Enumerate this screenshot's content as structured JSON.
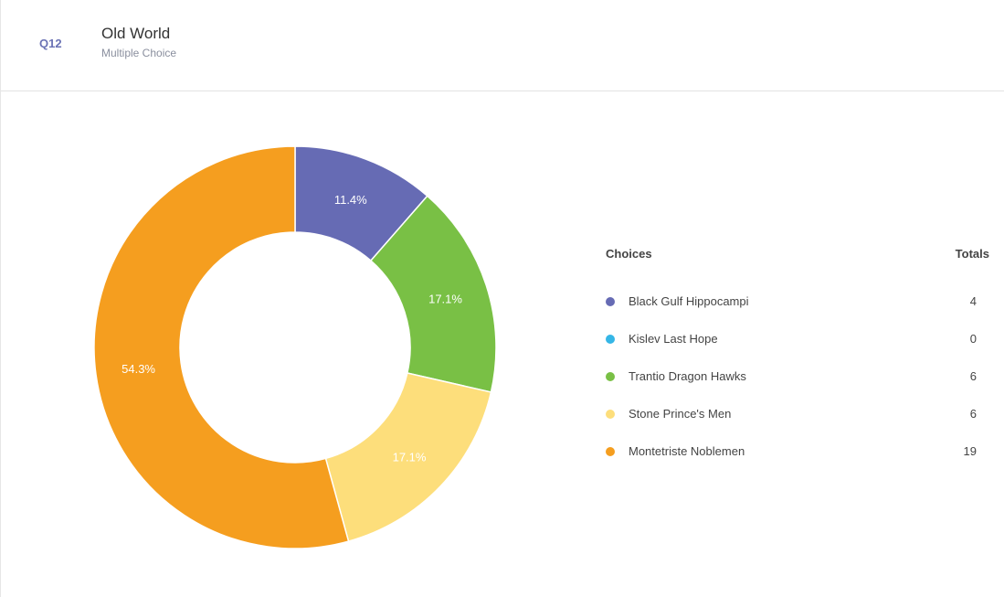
{
  "question": {
    "number": "Q12",
    "title": "Old World",
    "type": "Multiple Choice"
  },
  "legend": {
    "choices_header": "Choices",
    "totals_header": "Totals"
  },
  "chart_data": {
    "type": "pie",
    "variant": "donut",
    "title": "",
    "categories": [
      "Black Gulf Hippocampi",
      "Kislev Last Hope",
      "Trantio Dragon Hawks",
      "Stone Prince's Men",
      "Montetriste Noblemen"
    ],
    "values": [
      4,
      0,
      6,
      6,
      19
    ],
    "percent_labels": [
      "11.4%",
      "0%",
      "17.1%",
      "17.1%",
      "54.3%"
    ],
    "colors": [
      "#666bb4",
      "#35b6e6",
      "#79c045",
      "#fdde7b",
      "#f59e1f"
    ],
    "legend_placement": "right"
  }
}
